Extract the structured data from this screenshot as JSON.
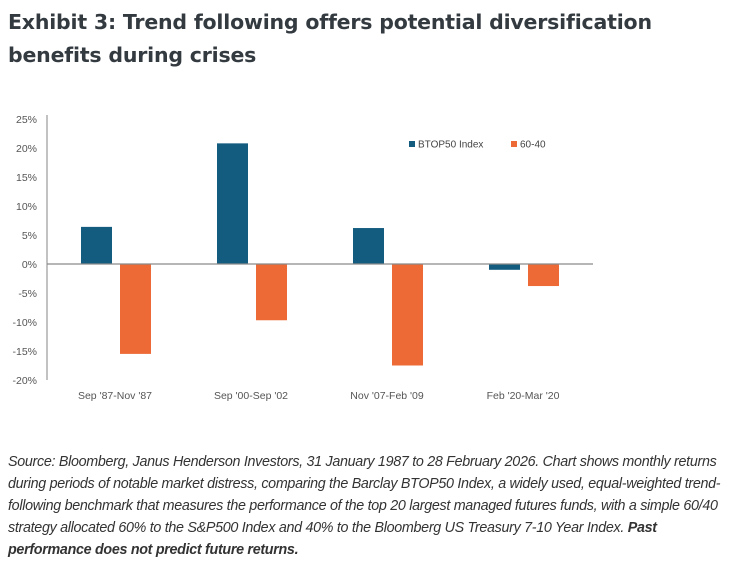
{
  "title": "Exhibit 3: Trend following offers potential diversification benefits during crises",
  "chart_data": {
    "type": "bar",
    "title": "Exhibit 3: Trend following offers potential diversification benefits during crises",
    "xlabel": "",
    "ylabel": "",
    "categories": [
      "Sep '87-Nov '87",
      "Sep '00-Sep '02",
      "Nov '07-Feb '09",
      "Feb '20-Mar '20"
    ],
    "series": [
      {
        "name": "BTOP50 Index",
        "color": "#145c7f",
        "values": [
          6.4,
          20.8,
          6.2,
          -1.0
        ]
      },
      {
        "name": "60-40",
        "color": "#ed6a36",
        "values": [
          -15.5,
          -9.7,
          -17.5,
          -3.8
        ]
      }
    ],
    "ylim": [
      -20,
      25
    ],
    "yticks": [
      25,
      20,
      15,
      10,
      5,
      0,
      -5,
      -10,
      -15,
      -20
    ],
    "ytick_labels": [
      "25%",
      "20%",
      "15%",
      "10%",
      "5%",
      "0%",
      "-5%",
      "-10%",
      "-15%",
      "-20%"
    ],
    "grid": false,
    "legend_position": "top-right"
  },
  "source": {
    "text": "Source: Bloomberg, Janus Henderson Investors, 31 January 1987 to 28 February 2026. Chart shows monthly returns during periods of notable market distress, comparing the Barclay BTOP50 Index, a widely used, equal-weighted trend-following benchmark that measures the performance of the top 20 largest managed futures funds, with a simple 60/40 strategy allocated 60% to the S&P500 Index and 40% to the Bloomberg US Treasury 7-10 Year Index.",
    "disclaimer": "Past performance does not predict future returns."
  }
}
